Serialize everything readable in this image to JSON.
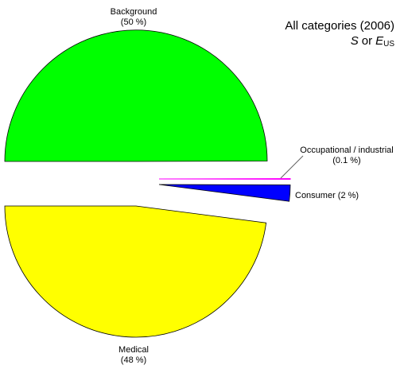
{
  "chart_data": {
    "type": "pie",
    "title": {
      "line1": "All categories (2006)",
      "line2_var1": "S",
      "line2_or": "or",
      "line2_var2": "E",
      "line2_sub": "US"
    },
    "slices": [
      {
        "name": "Background",
        "percent_label": "(50 %)",
        "value": 50,
        "color": "#00ff00"
      },
      {
        "name": "Occupational / industrial",
        "percent_label": "(0.1 %)",
        "value": 0.1,
        "color": "#ff00ff"
      },
      {
        "name": "Consumer",
        "percent_label": "(2 %)",
        "value": 2,
        "color": "#0000ff"
      },
      {
        "name": "Medical",
        "percent_label": "(48 %)",
        "value": 48,
        "color": "#ffff00"
      }
    ],
    "consumer_label": "Consumer (2 %)",
    "legend": "none"
  }
}
